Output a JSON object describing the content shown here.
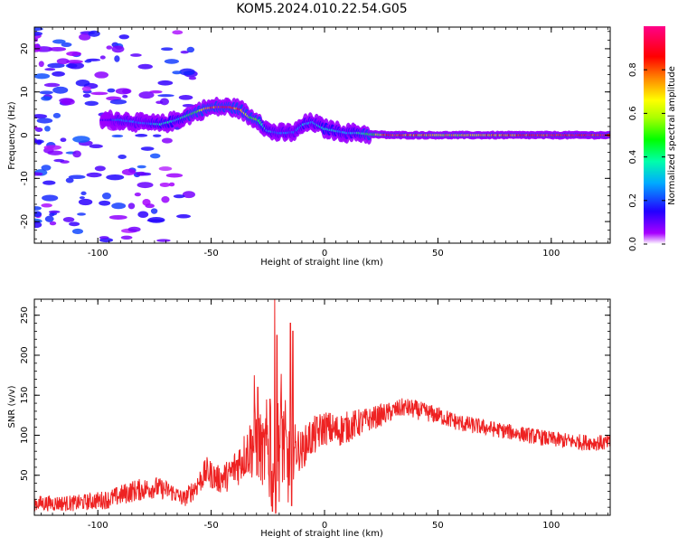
{
  "figure": {
    "title": "KOM5.2024.010.22.54.G05"
  },
  "chart_data": [
    {
      "type": "heatmap",
      "xlabel": "Height of straight line (km)",
      "ylabel": "Frequency (Hz)",
      "xlim": [
        -128,
        126
      ],
      "ylim": [
        -25,
        25
      ],
      "xticks": [
        -100,
        -50,
        0,
        50,
        100
      ],
      "yticks": [
        -20,
        -10,
        0,
        10,
        20
      ],
      "xtick_labels": [
        "-100",
        "-50",
        "0",
        "50",
        "100"
      ],
      "ytick_labels": [
        "-20",
        "-10",
        "0",
        "10",
        "20"
      ],
      "colorbar": {
        "label": "Normalized spectral amplitude",
        "range": [
          0,
          1
        ],
        "ticks": [
          0.0,
          0.2,
          0.4,
          0.6,
          0.8
        ],
        "tick_labels": [
          "0.0",
          "0.2",
          "0.4",
          "0.6",
          "0.8"
        ],
        "colormap": "gist_rainbow_r (white at 0)"
      },
      "ridge": {
        "x": [
          -95,
          -90,
          -80,
          -72,
          -65,
          -58,
          -52,
          -48,
          -42,
          -37,
          -33,
          -29,
          -25,
          -20,
          -17,
          -13,
          -9,
          -5,
          0,
          5,
          10,
          15,
          20,
          30,
          40,
          60,
          80,
          100,
          126
        ],
        "freq": [
          3.5,
          3.5,
          2.8,
          2.5,
          3.5,
          5.0,
          6.2,
          6.5,
          6.5,
          6.0,
          4.2,
          3.5,
          1.0,
          0.5,
          0.5,
          0.7,
          2.5,
          3.0,
          1.5,
          1.0,
          0.5,
          0.5,
          0.2,
          0.0,
          0.0,
          0.0,
          0.0,
          0.0,
          0.0
        ],
        "amplitude": [
          0.15,
          0.3,
          0.25,
          0.4,
          0.35,
          0.5,
          0.75,
          0.95,
          1.0,
          0.85,
          0.6,
          0.5,
          0.35,
          0.25,
          0.3,
          0.25,
          0.35,
          0.3,
          0.4,
          0.35,
          0.3,
          0.4,
          0.5,
          1.0,
          0.85,
          0.7,
          0.9,
          0.95,
          1.0
        ]
      }
    },
    {
      "type": "line",
      "xlabel": "Height of straight line (km)",
      "ylabel": "SNR (v/v)",
      "xlim": [
        -128,
        126
      ],
      "ylim": [
        0,
        270
      ],
      "xticks": [
        -100,
        -50,
        0,
        50,
        100
      ],
      "yticks": [
        50,
        100,
        150,
        200,
        250
      ],
      "xtick_labels": [
        "-100",
        "-50",
        "0",
        "50",
        "100"
      ],
      "ytick_labels": [
        "50",
        "100",
        "150",
        "200",
        "250"
      ],
      "color": "#ee2222",
      "series": [
        {
          "x": [
            -128,
            -110,
            -95,
            -85,
            -75,
            -68,
            -62,
            -57,
            -52,
            -47,
            -42,
            -38,
            -34,
            -30,
            -27,
            -24,
            -22,
            -19,
            -16,
            -13,
            -10,
            -7,
            -4,
            0,
            5,
            10,
            15,
            20,
            25,
            30,
            35,
            40,
            50,
            60,
            70,
            80,
            90,
            100,
            110,
            126
          ],
          "y": [
            15,
            15,
            20,
            30,
            35,
            30,
            20,
            35,
            55,
            45,
            50,
            65,
            80,
            95,
            75,
            90,
            50,
            110,
            60,
            85,
            80,
            95,
            100,
            110,
            105,
            110,
            115,
            120,
            125,
            130,
            135,
            132,
            125,
            115,
            110,
            105,
            100,
            95,
            92,
            90
          ],
          "noise": [
            10,
            10,
            12,
            14,
            14,
            12,
            10,
            15,
            18,
            18,
            20,
            28,
            32,
            55,
            40,
            90,
            60,
            80,
            50,
            30,
            25,
            25,
            25,
            22,
            22,
            20,
            18,
            15,
            14,
            12,
            12,
            12,
            11,
            11,
            10,
            10,
            10,
            10,
            10,
            10
          ]
        }
      ],
      "spikes": [
        {
          "x": -31,
          "y": 175
        },
        {
          "x": -29.5,
          "y": 160
        },
        {
          "x": -22,
          "y": 270
        },
        {
          "x": -21,
          "y": 225
        },
        {
          "x": -24,
          "y": 145
        },
        {
          "x": -15,
          "y": 240
        },
        {
          "x": -14,
          "y": 230
        },
        {
          "x": -18,
          "y": 130
        }
      ],
      "dips": [
        {
          "x": -23,
          "y": 5
        },
        {
          "x": -14.5,
          "y": 12
        }
      ]
    }
  ]
}
